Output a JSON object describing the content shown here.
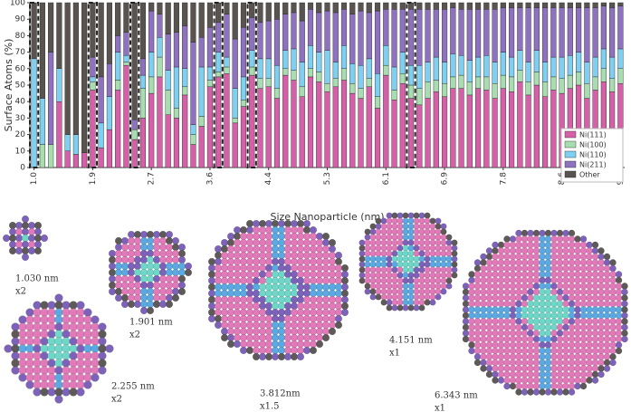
{
  "chart_data": {
    "type": "stacked_bar",
    "y_label": "Surface Atoms  (%)",
    "x_label": "Size Nanoparticle (nm)",
    "categories": [
      "1.0",
      null,
      null,
      null,
      null,
      null,
      null,
      "1.9",
      null,
      null,
      null,
      null,
      null,
      null,
      "2.7",
      null,
      null,
      null,
      null,
      null,
      null,
      "3.6",
      null,
      null,
      null,
      null,
      null,
      null,
      "4.4",
      null,
      null,
      null,
      null,
      null,
      null,
      "5.3",
      null,
      null,
      null,
      null,
      null,
      null,
      "6.1",
      null,
      null,
      null,
      null,
      null,
      null,
      "6.9",
      null,
      null,
      null,
      null,
      null,
      null,
      "7.8",
      null,
      null,
      null,
      null,
      null,
      null,
      "8.6",
      null,
      null,
      null,
      null,
      null,
      null,
      "9.5"
    ],
    "ylim": [
      0,
      100
    ],
    "yticks": [
      0,
      10,
      20,
      30,
      40,
      50,
      60,
      70,
      80,
      90,
      100
    ],
    "legend": "lower right",
    "highlighted_bars": [
      0,
      7,
      12,
      22,
      26,
      45
    ],
    "series": [
      {
        "name": "Ni(111)",
        "color": "#d660a8",
        "values": [
          0,
          0,
          0,
          40,
          10,
          8,
          9,
          47,
          12,
          23,
          47,
          62,
          17,
          30,
          45,
          55,
          32,
          30,
          44,
          14,
          25,
          49,
          55,
          57,
          27,
          37,
          56,
          48,
          49,
          42,
          56,
          53,
          43,
          55,
          52,
          46,
          49,
          53,
          45,
          42,
          49,
          36,
          56,
          41,
          51,
          42,
          38,
          42,
          46,
          43,
          48,
          48,
          44,
          48,
          47,
          42,
          48,
          46,
          52,
          44,
          50,
          43,
          47,
          45,
          48,
          50,
          42,
          47,
          52,
          46,
          51
        ]
      },
      {
        "name": "Ni(100)",
        "color": "#a8ddb0",
        "values": [
          0,
          14,
          14,
          0,
          0,
          0,
          0,
          5,
          0,
          0,
          6,
          2,
          6,
          18,
          10,
          12,
          15,
          6,
          5,
          6,
          6,
          4,
          3,
          4,
          3,
          4,
          5,
          6,
          5,
          6,
          4,
          6,
          6,
          5,
          6,
          5,
          5,
          7,
          6,
          6,
          5,
          7,
          6,
          6,
          6,
          8,
          10,
          10,
          7,
          8,
          7,
          8,
          8,
          7,
          8,
          9,
          8,
          9,
          7,
          8,
          8,
          9,
          8,
          9,
          8,
          8,
          9,
          8,
          8,
          8,
          9
        ]
      },
      {
        "name": "Ni(110)",
        "color": "#7fd0f0",
        "values": [
          66,
          28,
          0,
          20,
          10,
          12,
          0,
          3,
          15,
          20,
          17,
          4,
          0,
          8,
          15,
          12,
          12,
          25,
          11,
          6,
          30,
          8,
          12,
          6,
          18,
          14,
          10,
          12,
          12,
          14,
          11,
          13,
          15,
          14,
          12,
          20,
          10,
          14,
          12,
          14,
          12,
          14,
          12,
          14,
          13,
          12,
          14,
          12,
          14,
          13,
          14,
          12,
          13,
          12,
          13,
          13,
          14,
          12,
          12,
          12,
          13,
          12,
          12,
          13,
          12,
          12,
          13,
          12,
          12,
          13,
          12
        ]
      },
      {
        "name": "Ni(211)",
        "color": "#8e72c0",
        "values": [
          0,
          0,
          56,
          0,
          0,
          0,
          0,
          12,
          28,
          20,
          10,
          14,
          6,
          10,
          25,
          14,
          22,
          21,
          26,
          50,
          18,
          24,
          18,
          26,
          30,
          30,
          20,
          22,
          23,
          28,
          22,
          22,
          25,
          22,
          24,
          24,
          30,
          22,
          30,
          33,
          28,
          38,
          22,
          35,
          26,
          34,
          34,
          32,
          29,
          32,
          28,
          28,
          31,
          29,
          28,
          32,
          27,
          30,
          26,
          33,
          26,
          33,
          30,
          30,
          29,
          27,
          33,
          30,
          26,
          30,
          26
        ]
      },
      {
        "name": "Other",
        "color": "#5a5450",
        "values": [
          34,
          58,
          30,
          40,
          80,
          80,
          91,
          33,
          45,
          37,
          20,
          18,
          71,
          34,
          5,
          7,
          19,
          18,
          14,
          24,
          21,
          15,
          12,
          7,
          22,
          15,
          9,
          12,
          11,
          10,
          7,
          6,
          11,
          4,
          6,
          5,
          6,
          4,
          7,
          5,
          6,
          5,
          4,
          4,
          4,
          4,
          4,
          4,
          4,
          4,
          3,
          4,
          4,
          4,
          4,
          4,
          3,
          3,
          3,
          3,
          3,
          3,
          3,
          3,
          3,
          3,
          3,
          3,
          2,
          3,
          2
        ]
      }
    ]
  },
  "particles": [
    {
      "size": "1.030 nm",
      "scale": "x2"
    },
    {
      "size": "1.901 nm",
      "scale": "x2"
    },
    {
      "size": "2.255 nm",
      "scale": "x2"
    },
    {
      "size": "3.812nm",
      "scale": "x1.5"
    },
    {
      "size": "4.151 nm",
      "scale": "x1"
    },
    {
      "size": "6.343 nm",
      "scale": "x1"
    }
  ]
}
